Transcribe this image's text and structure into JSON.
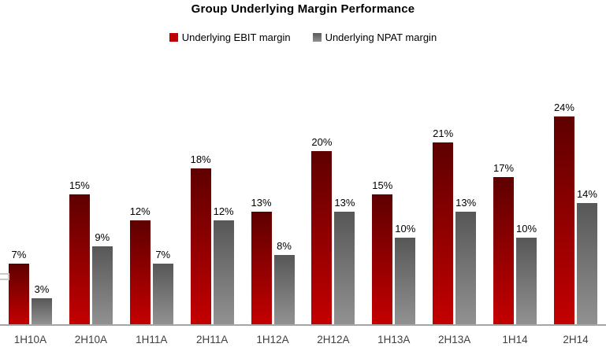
{
  "title": "Group Underlying Margin Performance",
  "legend": {
    "items": [
      {
        "label": "Underlying EBIT margin",
        "swatch_top": "#C00000",
        "swatch_bottom": "#C00000"
      },
      {
        "label": "Underlying NPAT margin",
        "swatch_top": "#595959",
        "swatch_bottom": "#8F8F8F"
      }
    ]
  },
  "chart_data": {
    "type": "bar",
    "title": "Group Underlying Margin Performance",
    "categories": [
      "1H10A",
      "2H10A",
      "1H11A",
      "2H11A",
      "1H12A",
      "2H12A",
      "1H13A",
      "2H13A",
      "1H14",
      "2H14"
    ],
    "series": [
      {
        "name": "Underlying EBIT margin",
        "values": [
          7,
          15,
          12,
          18,
          13,
          20,
          15,
          21,
          17,
          24
        ],
        "gradient_top": "#5E0000",
        "gradient_bottom": "#C40000"
      },
      {
        "name": "Underlying NPAT margin",
        "values": [
          3,
          9,
          7,
          12,
          8,
          13,
          10,
          13,
          10,
          14
        ],
        "gradient_top": "#575757",
        "gradient_bottom": "#919191"
      }
    ],
    "unit": "%",
    "data_labels": true,
    "xlabel": "",
    "ylabel": "",
    "ylim": [
      0,
      26
    ],
    "grid": false,
    "legend_position": "top",
    "axis_line_color": "#A6A6A6"
  }
}
